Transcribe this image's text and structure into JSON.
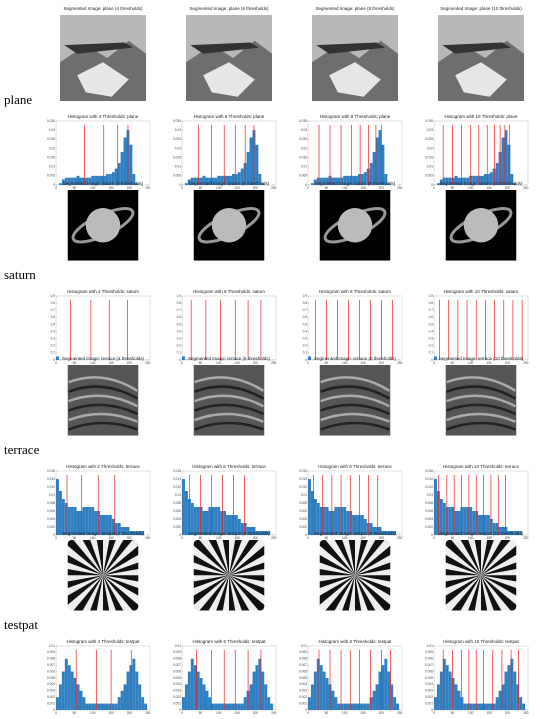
{
  "xlim": [
    0,
    256
  ],
  "xticks": [
    0,
    50,
    100,
    150,
    200,
    250
  ],
  "rows": [
    {
      "label": "plane",
      "histogram": {
        "ylim": [
          0,
          0.035
        ],
        "yticks": [
          0,
          0.005,
          0.01,
          0.015,
          0.02,
          0.025,
          0.03,
          0.035
        ],
        "bins": [
          0,
          8,
          16,
          24,
          32,
          40,
          48,
          56,
          64,
          72,
          80,
          88,
          96,
          104,
          112,
          120,
          128,
          136,
          144,
          152,
          160,
          168,
          176,
          184,
          192,
          200,
          208,
          216,
          224,
          232,
          240,
          248,
          256
        ],
        "counts": [
          0,
          0.001,
          0.003,
          0.004,
          0.004,
          0.004,
          0.004,
          0.005,
          0.004,
          0.004,
          0.004,
          0.004,
          0.005,
          0.005,
          0.005,
          0.005,
          0.005,
          0.006,
          0.006,
          0.007,
          0.009,
          0.012,
          0.018,
          0.026,
          0.03,
          0.022,
          0.006,
          0.001,
          0,
          0,
          0,
          0
        ]
      },
      "panels": [
        {
          "image_title": "Segmented Image: plane (4 thresholds)",
          "hist_title": "Histogram with 4 Thresholds: plane",
          "thresholds": [
            78,
            130,
            168,
            196
          ]
        },
        {
          "image_title": "Segmented Image: plane (6 thresholds)",
          "hist_title": "Histogram with 6 Thresholds: plane",
          "thresholds": [
            45,
            80,
            115,
            145,
            172,
            196
          ]
        },
        {
          "image_title": "Segmented Image: plane (8 thresholds)",
          "hist_title": "Histogram with 8 Thresholds: plane",
          "thresholds": [
            30,
            60,
            90,
            118,
            142,
            165,
            185,
            200
          ]
        },
        {
          "image_title": "Segmented Image: plane (10 thresholds)",
          "hist_title": "Histogram with 10 Thresholds: plane",
          "thresholds": [
            25,
            50,
            75,
            100,
            122,
            145,
            165,
            180,
            193,
            205
          ]
        }
      ]
    },
    {
      "label": "saturn",
      "histogram": {
        "ylim": [
          0,
          0.9
        ],
        "yticks": [
          0,
          0.1,
          0.2,
          0.3,
          0.4,
          0.5,
          0.6,
          0.7,
          0.8,
          0.9
        ],
        "bins": [
          0,
          8,
          16,
          24,
          32,
          40,
          48,
          56,
          64,
          72,
          80,
          88,
          96,
          104,
          112,
          120,
          128,
          136,
          144,
          152,
          160,
          168,
          176,
          184,
          192,
          200,
          208,
          216,
          224,
          232,
          240,
          248,
          256
        ],
        "counts": [
          0.05,
          0.004,
          0.003,
          0.003,
          0.003,
          0.003,
          0.003,
          0.003,
          0.003,
          0.003,
          0.003,
          0.003,
          0.003,
          0.003,
          0.003,
          0.003,
          0.003,
          0.003,
          0.003,
          0.003,
          0.003,
          0.003,
          0.003,
          0.003,
          0.003,
          0.003,
          0.002,
          0.002,
          0.002,
          0.001,
          0.001,
          0
        ]
      },
      "panels": [
        {
          "image_title": "Segmented Image: saturn (4 thresholds)",
          "hist_title": "Histogram with 4 Thresholds: saturn",
          "thresholds": [
            40,
            95,
            145,
            195
          ]
        },
        {
          "image_title": "Segmented Image: saturn (6 thresholds)",
          "hist_title": "Histogram with 6 Thresholds: saturn",
          "thresholds": [
            25,
            65,
            105,
            145,
            180,
            215
          ]
        },
        {
          "image_title": "Segmented Image: saturn (8 thresholds)",
          "hist_title": "Histogram with 8 Thresholds: saturn",
          "thresholds": [
            20,
            50,
            80,
            110,
            140,
            170,
            200,
            230
          ]
        },
        {
          "image_title": "Segmented Image: saturn (10 thresholds)",
          "hist_title": "Histogram with 10 Thresholds: saturn",
          "thresholds": [
            15,
            40,
            65,
            90,
            115,
            140,
            165,
            190,
            215,
            240
          ]
        }
      ]
    },
    {
      "label": "terrace",
      "histogram": {
        "ylim": [
          0,
          0.016
        ],
        "yticks": [
          0,
          0.002,
          0.004,
          0.006,
          0.008,
          0.01,
          0.012,
          0.014,
          0.016
        ],
        "bins": [
          0,
          8,
          16,
          24,
          32,
          40,
          48,
          56,
          64,
          72,
          80,
          88,
          96,
          104,
          112,
          120,
          128,
          136,
          144,
          152,
          160,
          168,
          176,
          184,
          192,
          200,
          208,
          216,
          224,
          232,
          240,
          248,
          256
        ],
        "counts": [
          0.014,
          0.011,
          0.009,
          0.008,
          0.007,
          0.007,
          0.007,
          0.006,
          0.006,
          0.007,
          0.007,
          0.007,
          0.007,
          0.006,
          0.006,
          0.005,
          0.005,
          0.005,
          0.005,
          0.004,
          0.003,
          0.003,
          0.002,
          0.002,
          0.002,
          0.001,
          0.001,
          0.001,
          0.001,
          0.001,
          0,
          0
        ]
      },
      "panels": [
        {
          "image_title": "Segmented Image: terrace (4 thresholds)",
          "hist_title": "Histogram with 4 Thresholds: terrace",
          "thresholds": [
            30,
            70,
            115,
            160
          ]
        },
        {
          "image_title": "Segmented Image: terrace (6 thresholds)",
          "hist_title": "Histogram with 6 Thresholds: terrace",
          "thresholds": [
            20,
            50,
            80,
            110,
            140,
            170
          ]
        },
        {
          "image_title": "Segmented Image: terrace (8 thresholds)",
          "hist_title": "Histogram with 8 Thresholds: terrace",
          "thresholds": [
            15,
            40,
            65,
            90,
            115,
            140,
            165,
            190
          ]
        },
        {
          "image_title": "Segmented Image: terrace (10 thresholds)",
          "hist_title": "Histogram with 10 Thresholds: terrace",
          "thresholds": [
            12,
            35,
            55,
            75,
            95,
            115,
            135,
            155,
            175,
            195
          ]
        }
      ]
    },
    {
      "label": "testpat",
      "histogram": {
        "ylim": [
          0,
          0.01
        ],
        "yticks": [
          0,
          0.001,
          0.002,
          0.003,
          0.004,
          0.005,
          0.006,
          0.007,
          0.008,
          0.009,
          0.01
        ],
        "bins": [
          0,
          8,
          16,
          24,
          32,
          40,
          48,
          56,
          64,
          72,
          80,
          88,
          96,
          104,
          112,
          120,
          128,
          136,
          144,
          152,
          160,
          168,
          176,
          184,
          192,
          200,
          208,
          216,
          224,
          232,
          240,
          248,
          256
        ],
        "counts": [
          0.002,
          0.004,
          0.006,
          0.008,
          0.007,
          0.006,
          0.005,
          0.004,
          0.003,
          0.002,
          0.001,
          0.001,
          0.001,
          0.001,
          0.001,
          0.001,
          0.001,
          0.001,
          0.001,
          0.001,
          0.001,
          0.002,
          0.003,
          0.004,
          0.006,
          0.007,
          0.008,
          0.006,
          0.004,
          0.002,
          0.001,
          0
        ]
      },
      "panels": [
        {
          "image_title": "Segmented Image: testpat (4 thresholds)",
          "hist_title": "Histogram with 4 Thresholds: testpat",
          "thresholds": [
            55,
            110,
            150,
            205
          ]
        },
        {
          "image_title": "Segmented Image: testpat (6 thresholds)",
          "hist_title": "Histogram with 6 Thresholds: testpat",
          "thresholds": [
            40,
            80,
            115,
            145,
            180,
            215
          ]
        },
        {
          "image_title": "Segmented Image: testpat (8 thresholds)",
          "hist_title": "Histogram with 8 Thresholds: testpat",
          "thresholds": [
            30,
            60,
            90,
            115,
            140,
            170,
            200,
            225
          ]
        },
        {
          "image_title": "Segmented Image: testpat (10 thresholds)",
          "hist_title": "Histogram with 10 Thresholds: testpat",
          "thresholds": [
            25,
            50,
            75,
            95,
            115,
            135,
            160,
            185,
            210,
            230
          ]
        }
      ]
    }
  ]
}
